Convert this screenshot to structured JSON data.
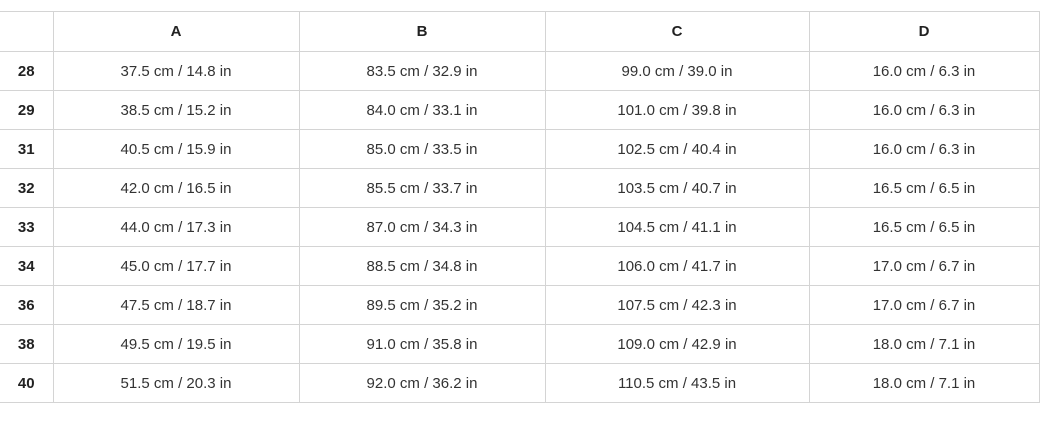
{
  "table": {
    "columns": [
      "A",
      "B",
      "C",
      "D"
    ],
    "rows": [
      [
        "28",
        "37.5 cm / 14.8 in",
        "83.5 cm / 32.9 in",
        "99.0 cm / 39.0 in",
        "16.0 cm / 6.3 in"
      ],
      [
        "29",
        "38.5 cm / 15.2 in",
        "84.0 cm / 33.1 in",
        "101.0 cm / 39.8 in",
        "16.0 cm / 6.3 in"
      ],
      [
        "31",
        "40.5 cm / 15.9 in",
        "85.0 cm / 33.5 in",
        "102.5 cm / 40.4 in",
        "16.0 cm / 6.3 in"
      ],
      [
        "32",
        "42.0 cm / 16.5 in",
        "85.5 cm / 33.7 in",
        "103.5 cm / 40.7 in",
        "16.5 cm / 6.5 in"
      ],
      [
        "33",
        "44.0 cm / 17.3 in",
        "87.0 cm / 34.3 in",
        "104.5 cm / 41.1 in",
        "16.5 cm / 6.5 in"
      ],
      [
        "34",
        "45.0 cm / 17.7 in",
        "88.5 cm / 34.8 in",
        "106.0 cm / 41.7 in",
        "17.0 cm / 6.7 in"
      ],
      [
        "36",
        "47.5 cm / 18.7 in",
        "89.5 cm / 35.2 in",
        "107.5 cm / 42.3 in",
        "17.0 cm / 6.7 in"
      ],
      [
        "38",
        "49.5 cm / 19.5 in",
        "91.0 cm / 35.8 in",
        "109.0 cm / 42.9 in",
        "18.0 cm / 7.1 in"
      ],
      [
        "40",
        "51.5 cm / 20.3 in",
        "92.0 cm / 36.2 in",
        "110.5 cm / 43.5 in",
        "18.0 cm / 7.1 in"
      ]
    ]
  }
}
